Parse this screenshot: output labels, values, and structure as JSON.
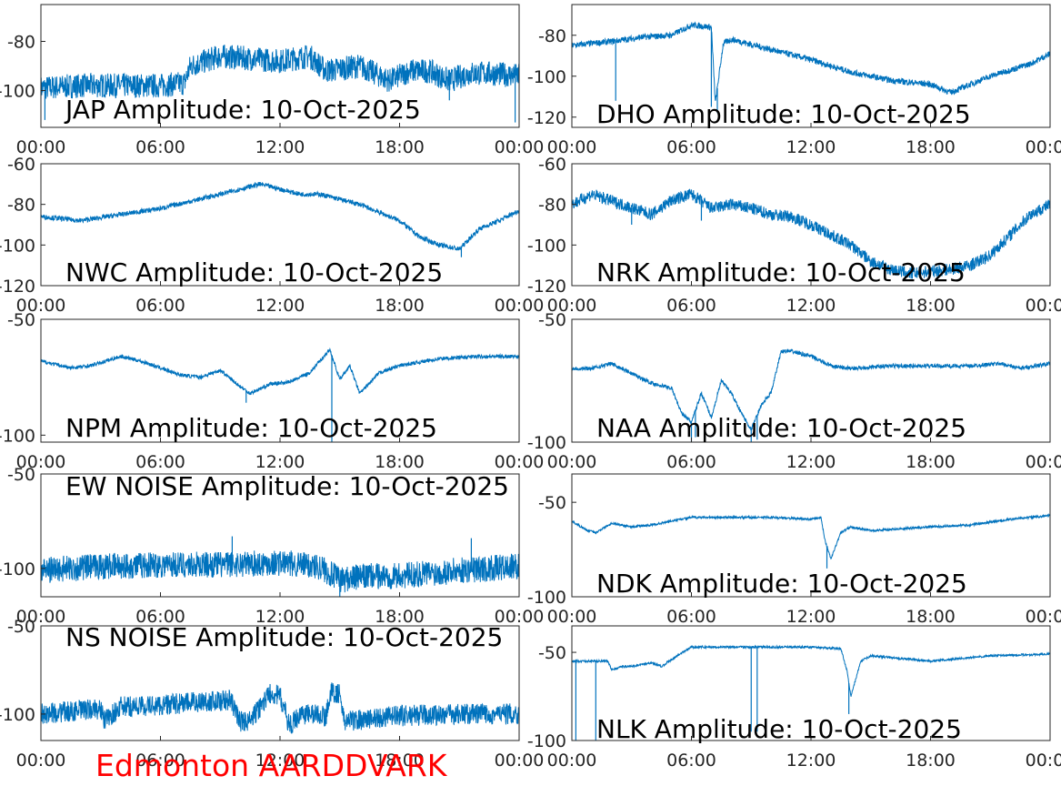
{
  "footer": {
    "text": "Edmonton AARDDVARK",
    "color": "#ff0000"
  },
  "line_color": "#0072bd",
  "chart_data": [
    {
      "type": "line",
      "title": "JAP Amplitude: 10-Oct-2025",
      "xlabel": "",
      "ylabel": "",
      "x_ticks": [
        "00:00",
        "06:00",
        "12:00",
        "18:00",
        "00:00"
      ],
      "xlim_hours": [
        0,
        24
      ],
      "ylim": [
        -115,
        -65
      ],
      "y_ticks": [
        -80,
        -100
      ],
      "y_tick_labels": [
        "-80",
        "-100"
      ],
      "noise": 5,
      "series": [
        {
          "x_hours": [
            0,
            2,
            4,
            6,
            7.2,
            7.5,
            9,
            12,
            13.5,
            14.3,
            16,
            17.5,
            18.5,
            19.5,
            20.5,
            21.5,
            22.5,
            24
          ],
          "y": [
            -99,
            -98,
            -98,
            -98,
            -97,
            -90,
            -86,
            -88,
            -86,
            -92,
            -90,
            -96,
            -92,
            -92,
            -96,
            -93,
            -93,
            -94
          ]
        }
      ],
      "spikes": [
        {
          "x_hours": 23.8,
          "to": -113
        },
        {
          "x_hours": 0.2,
          "to": -112
        },
        {
          "x_hours": 20.5,
          "to": -104
        }
      ]
    },
    {
      "type": "line",
      "title": "DHO Amplitude: 10-Oct-2025",
      "xlabel": "",
      "ylabel": "",
      "x_ticks": [
        "00:00",
        "06:00",
        "12:00",
        "18:00",
        "00:00"
      ],
      "xlim_hours": [
        0,
        24
      ],
      "ylim": [
        -125,
        -65
      ],
      "y_ticks": [
        -80,
        -100,
        -120
      ],
      "y_tick_labels": [
        "-80",
        "-100",
        "-120"
      ],
      "noise": 1.5,
      "series": [
        {
          "x_hours": [
            0,
            2,
            3.5,
            5,
            6,
            7,
            7.2,
            7.6,
            8,
            10,
            12,
            14,
            16,
            18,
            19,
            21,
            23,
            24
          ],
          "y": [
            -85,
            -83,
            -81,
            -80,
            -75,
            -76,
            -113,
            -84,
            -82,
            -87,
            -92,
            -98,
            -102,
            -104,
            -108,
            -100,
            -94,
            -89
          ]
        }
      ],
      "spikes": [
        {
          "x_hours": 2.2,
          "to": -112
        },
        {
          "x_hours": 7.3,
          "to": -118
        },
        {
          "x_hours": 7.0,
          "to": -115
        }
      ]
    },
    {
      "type": "line",
      "title": "NWC Amplitude: 10-Oct-2025",
      "xlabel": "",
      "ylabel": "",
      "x_ticks": [
        "00:00",
        "06:00",
        "12:00",
        "18:00",
        "00:00"
      ],
      "xlim_hours": [
        0,
        24
      ],
      "ylim": [
        -120,
        -60
      ],
      "y_ticks": [
        -60,
        -80,
        -100,
        -120
      ],
      "y_tick_labels": [
        "-60",
        "-80",
        "-100",
        "-120"
      ],
      "noise": 1.2,
      "series": [
        {
          "x_hours": [
            0,
            2,
            4,
            6,
            9,
            11,
            13,
            14,
            16,
            18,
            19,
            20,
            21,
            22,
            23,
            24
          ],
          "y": [
            -86,
            -88,
            -85,
            -82,
            -75,
            -70,
            -75,
            -75,
            -80,
            -88,
            -96,
            -100,
            -102,
            -92,
            -88,
            -83
          ]
        }
      ],
      "spikes": [
        {
          "x_hours": 21.1,
          "to": -106
        }
      ]
    },
    {
      "type": "line",
      "title": "NRK Amplitude: 10-Oct-2025",
      "xlabel": "",
      "ylabel": "",
      "x_ticks": [
        "00:00",
        "06:00",
        "12:00",
        "18:00",
        "00:00"
      ],
      "xlim_hours": [
        0,
        24
      ],
      "ylim": [
        -120,
        -60
      ],
      "y_ticks": [
        -60,
        -80,
        -100,
        -120
      ],
      "y_tick_labels": [
        "-60",
        "-80",
        "-100",
        "-120"
      ],
      "noise": 3,
      "series": [
        {
          "x_hours": [
            0,
            1,
            2.5,
            4,
            5,
            6,
            7,
            8,
            9,
            10,
            11,
            12,
            13,
            14,
            15,
            16,
            17,
            18,
            19,
            20,
            21,
            22,
            23,
            24
          ],
          "y": [
            -80,
            -75,
            -80,
            -85,
            -78,
            -75,
            -82,
            -80,
            -82,
            -85,
            -86,
            -90,
            -95,
            -100,
            -108,
            -112,
            -114,
            -113,
            -112,
            -110,
            -105,
            -95,
            -85,
            -80
          ]
        }
      ],
      "spikes": [
        {
          "x_hours": 3,
          "to": -90
        },
        {
          "x_hours": 6.5,
          "to": -88
        }
      ]
    },
    {
      "type": "line",
      "title": "NPM Amplitude: 10-Oct-2025",
      "xlabel": "",
      "ylabel": "",
      "x_ticks": [
        "00:00",
        "06:00",
        "12:00",
        "18:00",
        "00:00"
      ],
      "xlim_hours": [
        0,
        24
      ],
      "ylim": [
        -103,
        -50
      ],
      "y_ticks": [
        -50,
        -100
      ],
      "y_tick_labels": [
        "-50",
        "-100"
      ],
      "noise": 0.8,
      "series": [
        {
          "x_hours": [
            0,
            1.5,
            2.5,
            4,
            5,
            6,
            7,
            8,
            9,
            10,
            10.5,
            11.5,
            12.5,
            13.5,
            14,
            14.5,
            15,
            15.5,
            16,
            17,
            18,
            20,
            22,
            24
          ],
          "y": [
            -68,
            -71,
            -70,
            -66,
            -68,
            -71,
            -74,
            -75,
            -72,
            -79,
            -82,
            -78,
            -77,
            -73,
            -68,
            -63,
            -76,
            -70,
            -82,
            -73,
            -70,
            -67,
            -66,
            -66
          ]
        }
      ],
      "spikes": [
        {
          "x_hours": 14.6,
          "to": -103
        },
        {
          "x_hours": 10.3,
          "to": -86
        }
      ]
    },
    {
      "type": "line",
      "title": "NAA Amplitude: 10-Oct-2025",
      "xlabel": "",
      "ylabel": "",
      "x_ticks": [
        "00:00",
        "06:00",
        "12:00",
        "18:00",
        "00:00"
      ],
      "xlim_hours": [
        0,
        24
      ],
      "ylim": [
        -100,
        -50
      ],
      "y_ticks": [
        -50,
        -100
      ],
      "y_tick_labels": [
        "-50",
        "-100"
      ],
      "noise": 0.8,
      "series": [
        {
          "x_hours": [
            0,
            1,
            2,
            3,
            4,
            5,
            5.5,
            6,
            6.5,
            7,
            7.5,
            8,
            8.5,
            9,
            9.5,
            10,
            10.5,
            11,
            12,
            13,
            14,
            16,
            18,
            20,
            21.5,
            22.5,
            24
          ],
          "y": [
            -70,
            -70,
            -68,
            -72,
            -76,
            -78,
            -88,
            -92,
            -80,
            -90,
            -75,
            -80,
            -88,
            -95,
            -85,
            -80,
            -63,
            -63,
            -65,
            -69,
            -70,
            -69,
            -69,
            -69,
            -68,
            -70,
            -68
          ]
        }
      ],
      "spikes": [
        {
          "x_hours": 6,
          "to": -100
        },
        {
          "x_hours": 9,
          "to": -100
        },
        {
          "x_hours": 9.3,
          "to": -99
        },
        {
          "x_hours": 6.2,
          "to": -98
        }
      ]
    },
    {
      "type": "line",
      "title": "EW NOISE Amplitude: 10-Oct-2025",
      "xlabel": "",
      "ylabel": "",
      "x_ticks": [
        "00:00",
        "06:00",
        "12:00",
        "18:00",
        "00:00"
      ],
      "xlim_hours": [
        0,
        24
      ],
      "ylim": [
        -115,
        -50
      ],
      "y_ticks": [
        -50,
        -100
      ],
      "y_tick_labels": [
        "-50",
        "-100"
      ],
      "noise": 7,
      "series": [
        {
          "x_hours": [
            0,
            3,
            6,
            9,
            12,
            14,
            15,
            16.5,
            18,
            21,
            24
          ],
          "y": [
            -101,
            -99,
            -98,
            -98,
            -97,
            -99,
            -106,
            -104,
            -104,
            -101,
            -99
          ]
        }
      ],
      "spikes": [
        {
          "x_hours": 9.6,
          "to": -83
        },
        {
          "x_hours": 21.6,
          "to": -84
        },
        {
          "x_hours": 15,
          "to": -115
        }
      ]
    },
    {
      "type": "line",
      "title": "NDK Amplitude: 10-Oct-2025",
      "xlabel": "",
      "ylabel": "",
      "x_ticks": [
        "00:00",
        "06:00",
        "12:00",
        "18:00",
        "00:00"
      ],
      "xlim_hours": [
        0,
        24
      ],
      "ylim": [
        -100,
        -35
      ],
      "y_ticks": [
        -50,
        -100
      ],
      "y_tick_labels": [
        "-50",
        "-100"
      ],
      "noise": 0.6,
      "series": [
        {
          "x_hours": [
            0,
            0.8,
            1.2,
            2,
            3,
            4,
            5,
            6,
            8,
            10,
            12,
            12.5,
            12.7,
            13,
            13.5,
            14,
            15,
            18,
            20,
            22,
            24
          ],
          "y": [
            -60,
            -65,
            -66,
            -61,
            -63,
            -62,
            -60,
            -58,
            -58,
            -58,
            -59,
            -58,
            -70,
            -80,
            -66,
            -63,
            -65,
            -63,
            -62,
            -59,
            -57
          ]
        }
      ],
      "spikes": [
        {
          "x_hours": 12.8,
          "to": -85
        }
      ]
    },
    {
      "type": "line",
      "title": "NS NOISE Amplitude: 10-Oct-2025",
      "xlabel": "",
      "ylabel": "",
      "x_ticks": [
        "00:00",
        "06:00",
        "12:00",
        "18:00",
        "00:00"
      ],
      "xlim_hours": [
        0,
        24
      ],
      "ylim": [
        -115,
        -50
      ],
      "y_ticks": [
        -50,
        -100
      ],
      "y_tick_labels": [
        "-50",
        "-100"
      ],
      "noise": 6,
      "series": [
        {
          "x_hours": [
            0,
            2,
            3,
            3.2,
            4,
            6,
            8,
            9.5,
            10,
            10.5,
            11.5,
            12,
            12.5,
            13,
            14,
            14.3,
            14.5,
            15,
            15.2,
            18,
            21,
            24
          ],
          "y": [
            -100,
            -98,
            -97,
            -104,
            -96,
            -95,
            -93,
            -92,
            -104,
            -104,
            -88,
            -90,
            -107,
            -100,
            -100,
            -102,
            -88,
            -88,
            -104,
            -101,
            -100,
            -100
          ]
        }
      ],
      "spikes": [
        {
          "x_hours": 11.5,
          "to": -83
        },
        {
          "x_hours": 14.8,
          "to": -84
        }
      ]
    },
    {
      "type": "line",
      "title": "NLK Amplitude: 10-Oct-2025",
      "xlabel": "",
      "ylabel": "",
      "x_ticks": [
        "00:00",
        "06:00",
        "12:00",
        "18:00",
        "00:00"
      ],
      "xlim_hours": [
        0,
        24
      ],
      "ylim": [
        -100,
        -35
      ],
      "y_ticks": [
        -50,
        -100
      ],
      "y_tick_labels": [
        "-50",
        "-100"
      ],
      "noise": 0.6,
      "series": [
        {
          "x_hours": [
            0,
            1,
            1.2,
            1.8,
            2,
            2.5,
            3,
            4,
            4.5,
            5,
            6,
            8,
            10,
            12,
            13.5,
            13.8,
            14,
            14.5,
            15,
            18,
            21,
            24
          ],
          "y": [
            -55,
            -55,
            -55,
            -55,
            -60,
            -58,
            -58,
            -56,
            -58,
            -54,
            -47,
            -47,
            -47,
            -47,
            -48,
            -60,
            -75,
            -55,
            -52,
            -55,
            -52,
            -51
          ]
        }
      ],
      "spikes": [
        {
          "x_hours": 0.2,
          "to": -100
        },
        {
          "x_hours": 1.2,
          "to": -100
        },
        {
          "x_hours": 9,
          "to": -95
        },
        {
          "x_hours": 9.3,
          "to": -95
        },
        {
          "x_hours": 13.9,
          "to": -85
        }
      ]
    }
  ]
}
